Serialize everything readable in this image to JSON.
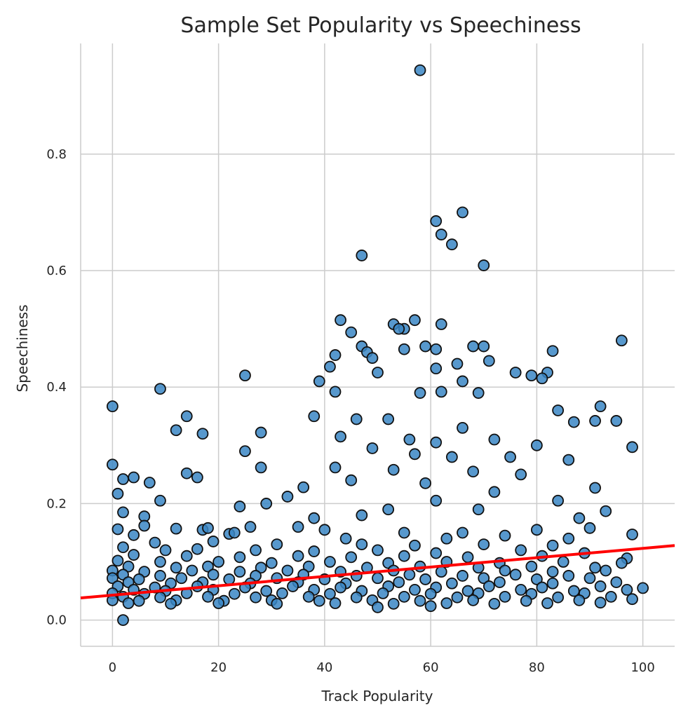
{
  "chart_data": {
    "type": "scatter",
    "title": "Sample Set Popularity vs Speechiness",
    "xlabel": "Track Popularity",
    "ylabel": "Speechiness",
    "xlim": [
      -6,
      106
    ],
    "ylim": [
      -0.045,
      0.99
    ],
    "x_ticks": [
      0,
      20,
      40,
      60,
      80,
      100
    ],
    "y_ticks": [
      0.0,
      0.2,
      0.4,
      0.6,
      0.8
    ],
    "grid": true,
    "point_color": "#3a86c4",
    "point_edge_color": "#111111",
    "trend_color": "#ff0000",
    "trend_line": {
      "x": [
        -6,
        106
      ],
      "y": [
        0.038,
        0.128
      ]
    },
    "series": [
      {
        "points": [
          [
            58,
            0.944
          ],
          [
            66,
            0.7
          ],
          [
            61,
            0.685
          ],
          [
            62,
            0.662
          ],
          [
            64,
            0.645
          ],
          [
            47,
            0.626
          ],
          [
            70,
            0.609
          ],
          [
            43,
            0.515
          ],
          [
            57,
            0.515
          ],
          [
            53,
            0.508
          ],
          [
            62,
            0.508
          ],
          [
            55,
            0.5
          ],
          [
            54,
            0.5
          ],
          [
            45,
            0.494
          ],
          [
            96,
            0.48
          ],
          [
            47,
            0.47
          ],
          [
            59,
            0.47
          ],
          [
            68,
            0.47
          ],
          [
            70,
            0.47
          ],
          [
            55,
            0.465
          ],
          [
            61,
            0.465
          ],
          [
            83,
            0.462
          ],
          [
            48,
            0.46
          ],
          [
            42,
            0.455
          ],
          [
            49,
            0.45
          ],
          [
            71,
            0.445
          ],
          [
            65,
            0.44
          ],
          [
            41,
            0.435
          ],
          [
            61,
            0.432
          ],
          [
            50,
            0.425
          ],
          [
            25,
            0.42
          ],
          [
            76,
            0.425
          ],
          [
            82,
            0.425
          ],
          [
            79,
            0.42
          ],
          [
            39,
            0.41
          ],
          [
            66,
            0.41
          ],
          [
            9,
            0.397
          ],
          [
            42,
            0.392
          ],
          [
            62,
            0.392
          ],
          [
            69,
            0.39
          ],
          [
            81,
            0.415
          ],
          [
            58,
            0.39
          ],
          [
            0,
            0.367
          ],
          [
            92,
            0.367
          ],
          [
            38,
            0.35
          ],
          [
            14,
            0.35
          ],
          [
            46,
            0.345
          ],
          [
            52,
            0.345
          ],
          [
            84,
            0.36
          ],
          [
            95,
            0.342
          ],
          [
            87,
            0.34
          ],
          [
            91,
            0.342
          ],
          [
            66,
            0.33
          ],
          [
            12,
            0.326
          ],
          [
            28,
            0.322
          ],
          [
            17,
            0.32
          ],
          [
            43,
            0.315
          ],
          [
            56,
            0.31
          ],
          [
            61,
            0.305
          ],
          [
            72,
            0.31
          ],
          [
            80,
            0.3
          ],
          [
            98,
            0.297
          ],
          [
            49,
            0.295
          ],
          [
            25,
            0.29
          ],
          [
            57,
            0.285
          ],
          [
            64,
            0.28
          ],
          [
            75,
            0.28
          ],
          [
            86,
            0.275
          ],
          [
            0,
            0.267
          ],
          [
            42,
            0.262
          ],
          [
            28,
            0.262
          ],
          [
            53,
            0.258
          ],
          [
            68,
            0.255
          ],
          [
            77,
            0.25
          ],
          [
            14,
            0.252
          ],
          [
            16,
            0.245
          ],
          [
            2,
            0.242
          ],
          [
            4,
            0.245
          ],
          [
            45,
            0.24
          ],
          [
            59,
            0.235
          ],
          [
            91,
            0.227
          ],
          [
            7,
            0.236
          ],
          [
            36,
            0.228
          ],
          [
            72,
            0.22
          ],
          [
            1,
            0.217
          ],
          [
            33,
            0.212
          ],
          [
            61,
            0.205
          ],
          [
            9,
            0.205
          ],
          [
            24,
            0.195
          ],
          [
            84,
            0.205
          ],
          [
            29,
            0.2
          ],
          [
            52,
            0.19
          ],
          [
            93,
            0.187
          ],
          [
            69,
            0.19
          ],
          [
            47,
            0.18
          ],
          [
            2,
            0.185
          ],
          [
            6,
            0.178
          ],
          [
            38,
            0.175
          ],
          [
            88,
            0.175
          ],
          [
            6,
            0.162
          ],
          [
            12,
            0.157
          ],
          [
            17,
            0.155
          ],
          [
            18,
            0.158
          ],
          [
            1,
            0.156
          ],
          [
            26,
            0.16
          ],
          [
            35,
            0.16
          ],
          [
            40,
            0.155
          ],
          [
            55,
            0.15
          ],
          [
            66,
            0.15
          ],
          [
            80,
            0.155
          ],
          [
            90,
            0.158
          ],
          [
            98,
            0.147
          ],
          [
            4,
            0.146
          ],
          [
            22,
            0.148
          ],
          [
            23,
            0.15
          ],
          [
            44,
            0.14
          ],
          [
            63,
            0.14
          ],
          [
            74,
            0.145
          ],
          [
            86,
            0.14
          ],
          [
            8,
            0.133
          ],
          [
            19,
            0.135
          ],
          [
            31,
            0.13
          ],
          [
            47,
            0.13
          ],
          [
            57,
            0.128
          ],
          [
            70,
            0.13
          ],
          [
            83,
            0.128
          ],
          [
            2,
            0.125
          ],
          [
            10,
            0.12
          ],
          [
            16,
            0.122
          ],
          [
            27,
            0.12
          ],
          [
            38,
            0.118
          ],
          [
            50,
            0.12
          ],
          [
            61,
            0.115
          ],
          [
            77,
            0.12
          ],
          [
            89,
            0.115
          ],
          [
            4,
            0.112
          ],
          [
            14,
            0.11
          ],
          [
            24,
            0.108
          ],
          [
            35,
            0.11
          ],
          [
            45,
            0.108
          ],
          [
            55,
            0.11
          ],
          [
            67,
            0.108
          ],
          [
            81,
            0.11
          ],
          [
            97,
            0.106
          ],
          [
            1,
            0.102
          ],
          [
            9,
            0.1
          ],
          [
            20,
            0.1
          ],
          [
            30,
            0.098
          ],
          [
            41,
            0.1
          ],
          [
            52,
            0.098
          ],
          [
            63,
            0.1
          ],
          [
            73,
            0.098
          ],
          [
            85,
            0.1
          ],
          [
            96,
            0.098
          ],
          [
            3,
            0.092
          ],
          [
            12,
            0.09
          ],
          [
            18,
            0.092
          ],
          [
            28,
            0.09
          ],
          [
            37,
            0.092
          ],
          [
            48,
            0.09
          ],
          [
            58,
            0.092
          ],
          [
            69,
            0.09
          ],
          [
            79,
            0.092
          ],
          [
            91,
            0.09
          ],
          [
            0,
            0.085
          ],
          [
            6,
            0.083
          ],
          [
            15,
            0.085
          ],
          [
            24,
            0.083
          ],
          [
            33,
            0.085
          ],
          [
            43,
            0.083
          ],
          [
            53,
            0.085
          ],
          [
            62,
            0.083
          ],
          [
            74,
            0.085
          ],
          [
            83,
            0.083
          ],
          [
            93,
            0.085
          ],
          [
            2,
            0.078
          ],
          [
            9,
            0.076
          ],
          [
            19,
            0.078
          ],
          [
            27,
            0.076
          ],
          [
            36,
            0.078
          ],
          [
            46,
            0.076
          ],
          [
            56,
            0.078
          ],
          [
            66,
            0.076
          ],
          [
            76,
            0.078
          ],
          [
            86,
            0.076
          ],
          [
            0,
            0.072
          ],
          [
            5,
            0.07
          ],
          [
            13,
            0.072
          ],
          [
            22,
            0.07
          ],
          [
            31,
            0.072
          ],
          [
            40,
            0.07
          ],
          [
            50,
            0.072
          ],
          [
            59,
            0.07
          ],
          [
            70,
            0.072
          ],
          [
            80,
            0.07
          ],
          [
            90,
            0.072
          ],
          [
            3,
            0.065
          ],
          [
            11,
            0.063
          ],
          [
            17,
            0.065
          ],
          [
            26,
            0.063
          ],
          [
            35,
            0.065
          ],
          [
            44,
            0.063
          ],
          [
            54,
            0.065
          ],
          [
            64,
            0.063
          ],
          [
            73,
            0.065
          ],
          [
            83,
            0.063
          ],
          [
            95,
            0.065
          ],
          [
            1,
            0.058
          ],
          [
            8,
            0.056
          ],
          [
            16,
            0.058
          ],
          [
            25,
            0.056
          ],
          [
            34,
            0.058
          ],
          [
            43,
            0.056
          ],
          [
            52,
            0.058
          ],
          [
            61,
            0.056
          ],
          [
            71,
            0.058
          ],
          [
            81,
            0.056
          ],
          [
            92,
            0.058
          ],
          [
            100,
            0.055
          ],
          [
            4,
            0.052
          ],
          [
            10,
            0.05
          ],
          [
            19,
            0.052
          ],
          [
            29,
            0.05
          ],
          [
            38,
            0.052
          ],
          [
            47,
            0.05
          ],
          [
            57,
            0.052
          ],
          [
            67,
            0.05
          ],
          [
            77,
            0.052
          ],
          [
            87,
            0.05
          ],
          [
            97,
            0.052
          ],
          [
            0,
            0.046
          ],
          [
            6,
            0.045
          ],
          [
            14,
            0.046
          ],
          [
            23,
            0.045
          ],
          [
            32,
            0.046
          ],
          [
            41,
            0.045
          ],
          [
            51,
            0.046
          ],
          [
            60,
            0.045
          ],
          [
            69,
            0.046
          ],
          [
            79,
            0.045
          ],
          [
            89,
            0.046
          ],
          [
            2,
            0.04
          ],
          [
            9,
            0.039
          ],
          [
            18,
            0.04
          ],
          [
            27,
            0.039
          ],
          [
            37,
            0.04
          ],
          [
            46,
            0.039
          ],
          [
            55,
            0.04
          ],
          [
            65,
            0.039
          ],
          [
            74,
            0.04
          ],
          [
            84,
            0.039
          ],
          [
            94,
            0.04
          ],
          [
            0,
            0.034
          ],
          [
            5,
            0.033
          ],
          [
            12,
            0.034
          ],
          [
            21,
            0.033
          ],
          [
            30,
            0.034
          ],
          [
            39,
            0.033
          ],
          [
            49,
            0.034
          ],
          [
            58,
            0.033
          ],
          [
            68,
            0.034
          ],
          [
            78,
            0.033
          ],
          [
            88,
            0.034
          ],
          [
            98,
            0.036
          ],
          [
            3,
            0.029
          ],
          [
            11,
            0.028
          ],
          [
            20,
            0.029
          ],
          [
            31,
            0.028
          ],
          [
            42,
            0.029
          ],
          [
            53,
            0.028
          ],
          [
            63,
            0.029
          ],
          [
            72,
            0.028
          ],
          [
            82,
            0.029
          ],
          [
            92,
            0.03
          ],
          [
            50,
            0.022
          ],
          [
            60,
            0.024
          ],
          [
            2,
            0.0
          ]
        ]
      }
    ]
  }
}
